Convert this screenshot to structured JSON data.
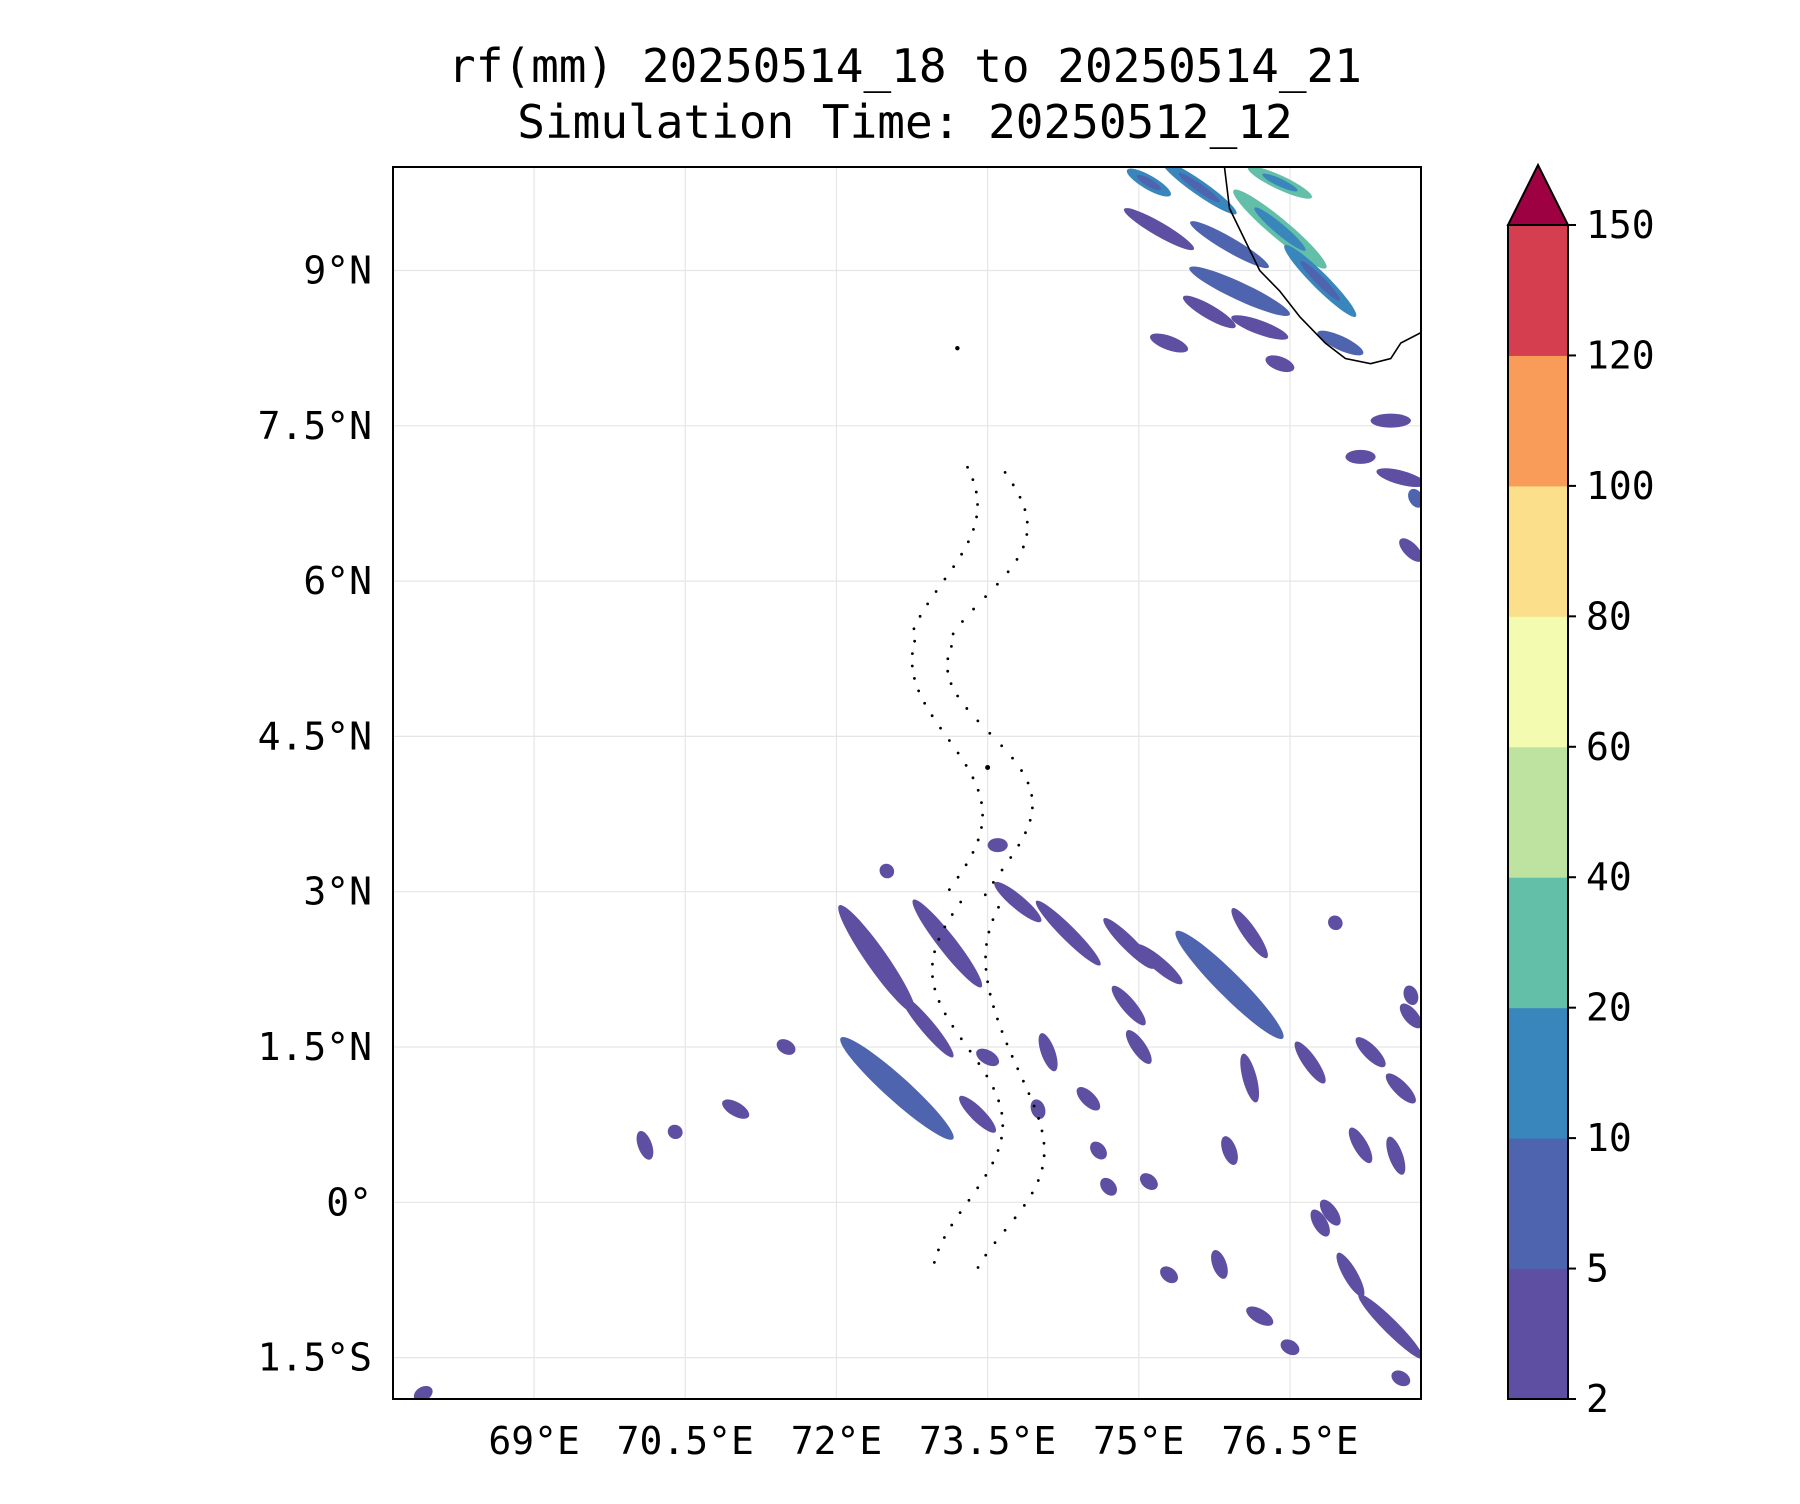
{
  "title": {
    "line1": "rf(mm) 20250514_18 to 20250514_21",
    "line2": "Simulation Time: 20250512_12"
  },
  "map": {
    "lon_range": [
      67.6,
      77.8
    ],
    "lat_range": [
      -1.9,
      10.0
    ],
    "gridlines": true,
    "lat_ticks": [
      {
        "value": 9,
        "label": "9°N"
      },
      {
        "value": 7.5,
        "label": "7.5°N"
      },
      {
        "value": 6,
        "label": "6°N"
      },
      {
        "value": 4.5,
        "label": "4.5°N"
      },
      {
        "value": 3,
        "label": "3°N"
      },
      {
        "value": 1.5,
        "label": "1.5°N"
      },
      {
        "value": 0,
        "label": "0°"
      },
      {
        "value": -1.5,
        "label": "1.5°S"
      }
    ],
    "lon_ticks": [
      {
        "value": 69,
        "label": "69°E"
      },
      {
        "value": 70.5,
        "label": "70.5°E"
      },
      {
        "value": 72,
        "label": "72°E"
      },
      {
        "value": 73.5,
        "label": "73.5°E"
      },
      {
        "value": 75,
        "label": "75°E"
      },
      {
        "value": 76.5,
        "label": "76.5°E"
      }
    ]
  },
  "colorbar": {
    "levels": [
      "2",
      "5",
      "10",
      "20",
      "40",
      "60",
      "80",
      "100",
      "120",
      "150"
    ],
    "colors": [
      "#5e4fa2",
      "#4f64ae",
      "#3986bc",
      "#64bfa8",
      "#bee3a0",
      "#f2fbb0",
      "#fcdf8b",
      "#f99c59",
      "#d53e4f"
    ],
    "extend_color": "#9e0142",
    "extend": "max"
  },
  "rain_cells": [
    {
      "lon": 72.4,
      "lat": 2.35,
      "len": 1.3,
      "ang": -55,
      "lvl": 0
    },
    {
      "lon": 72.9,
      "lat": 1.7,
      "len": 0.8,
      "ang": -50,
      "lvl": 0
    },
    {
      "lon": 73.1,
      "lat": 2.5,
      "len": 1.1,
      "ang": -52,
      "lvl": 0
    },
    {
      "lon": 72.6,
      "lat": 1.1,
      "len": 1.5,
      "ang": -42,
      "lvl": 1
    },
    {
      "lon": 73.4,
      "lat": 0.85,
      "len": 0.5,
      "ang": -45,
      "lvl": 0
    },
    {
      "lon": 73.8,
      "lat": 2.9,
      "len": 0.6,
      "ang": -40,
      "lvl": 0
    },
    {
      "lon": 74.3,
      "lat": 2.6,
      "len": 0.9,
      "ang": -45,
      "lvl": 0
    },
    {
      "lon": 74.9,
      "lat": 2.5,
      "len": 0.7,
      "ang": -45,
      "lvl": 0
    },
    {
      "lon": 75.2,
      "lat": 2.3,
      "len": 0.6,
      "ang": -40,
      "lvl": 0
    },
    {
      "lon": 75.9,
      "lat": 2.1,
      "len": 1.5,
      "ang": -45,
      "lvl": 1
    },
    {
      "lon": 76.1,
      "lat": 2.6,
      "len": 0.6,
      "ang": -55,
      "lvl": 0
    },
    {
      "lon": 74.9,
      "lat": 1.9,
      "len": 0.5,
      "ang": -50,
      "lvl": 0
    },
    {
      "lon": 75.0,
      "lat": 1.5,
      "len": 0.4,
      "ang": -55,
      "lvl": 0
    },
    {
      "lon": 74.1,
      "lat": 1.45,
      "len": 0.4,
      "ang": -70,
      "lvl": 0
    },
    {
      "lon": 73.5,
      "lat": 1.4,
      "len": 0.25,
      "ang": -30,
      "lvl": 0
    },
    {
      "lon": 71.5,
      "lat": 1.5,
      "len": 0.2,
      "ang": -30,
      "lvl": 0
    },
    {
      "lon": 71.0,
      "lat": 0.9,
      "len": 0.3,
      "ang": -30,
      "lvl": 0
    },
    {
      "lon": 70.1,
      "lat": 0.55,
      "len": 0.3,
      "ang": -70,
      "lvl": 0
    },
    {
      "lon": 70.4,
      "lat": 0.68,
      "len": 0.15,
      "ang": -30,
      "lvl": 0
    },
    {
      "lon": 73.6,
      "lat": 3.45,
      "len": 0.2,
      "ang": 0,
      "lvl": 0
    },
    {
      "lon": 72.5,
      "lat": 3.2,
      "len": 0.15,
      "ang": -45,
      "lvl": 0
    },
    {
      "lon": 76.7,
      "lat": 1.35,
      "len": 0.5,
      "ang": -55,
      "lvl": 0
    },
    {
      "lon": 77.3,
      "lat": 1.45,
      "len": 0.4,
      "ang": -45,
      "lvl": 0
    },
    {
      "lon": 77.7,
      "lat": 1.8,
      "len": 0.3,
      "ang": -50,
      "lvl": 0
    },
    {
      "lon": 77.6,
      "lat": 1.1,
      "len": 0.4,
      "ang": -45,
      "lvl": 0
    },
    {
      "lon": 76.1,
      "lat": 1.2,
      "len": 0.5,
      "ang": -75,
      "lvl": 0
    },
    {
      "lon": 77.2,
      "lat": 0.55,
      "len": 0.4,
      "ang": -60,
      "lvl": 0
    },
    {
      "lon": 77.55,
      "lat": 0.45,
      "len": 0.4,
      "ang": -70,
      "lvl": 0
    },
    {
      "lon": 77.5,
      "lat": -1.2,
      "len": 0.9,
      "ang": -45,
      "lvl": 0
    },
    {
      "lon": 77.1,
      "lat": -0.7,
      "len": 0.5,
      "ang": -60,
      "lvl": 0
    },
    {
      "lon": 76.8,
      "lat": -0.2,
      "len": 0.3,
      "ang": -60,
      "lvl": 0
    },
    {
      "lon": 76.2,
      "lat": -1.1,
      "len": 0.3,
      "ang": -30,
      "lvl": 0
    },
    {
      "lon": 75.8,
      "lat": -0.6,
      "len": 0.3,
      "ang": -70,
      "lvl": 0
    },
    {
      "lon": 75.3,
      "lat": -0.7,
      "len": 0.2,
      "ang": -40,
      "lvl": 0
    },
    {
      "lon": 75.9,
      "lat": 0.5,
      "len": 0.3,
      "ang": -70,
      "lvl": 0
    },
    {
      "lon": 75.1,
      "lat": 0.2,
      "len": 0.2,
      "ang": -40,
      "lvl": 0
    },
    {
      "lon": 74.5,
      "lat": 1.0,
      "len": 0.3,
      "ang": -45,
      "lvl": 0
    },
    {
      "lon": 74.0,
      "lat": 0.9,
      "len": 0.2,
      "ang": -70,
      "lvl": 0
    },
    {
      "lon": 74.6,
      "lat": 0.5,
      "len": 0.2,
      "ang": -50,
      "lvl": 0
    },
    {
      "lon": 74.7,
      "lat": 0.15,
      "len": 0.2,
      "ang": -50,
      "lvl": 0
    },
    {
      "lon": 77.6,
      "lat": -1.7,
      "len": 0.2,
      "ang": -30,
      "lvl": 0
    },
    {
      "lon": 76.5,
      "lat": -1.4,
      "len": 0.2,
      "ang": -30,
      "lvl": 0
    },
    {
      "lon": 76.9,
      "lat": -0.1,
      "len": 0.3,
      "ang": -55,
      "lvl": 0
    },
    {
      "lon": 76.95,
      "lat": 2.7,
      "len": 0.15,
      "ang": -45,
      "lvl": 0
    },
    {
      "lon": 77.7,
      "lat": 2.0,
      "len": 0.2,
      "ang": -70,
      "lvl": 0
    },
    {
      "lon": 67.9,
      "lat": -1.85,
      "len": 0.2,
      "ang": 30,
      "lvl": 0
    },
    {
      "lon": 75.7,
      "lat": 8.6,
      "len": 0.6,
      "ang": -30,
      "lvl": 0
    },
    {
      "lon": 76.0,
      "lat": 8.8,
      "len": 1.1,
      "ang": -25,
      "lvl": 1
    },
    {
      "lon": 75.2,
      "lat": 9.4,
      "len": 0.8,
      "ang": -30,
      "lvl": 0
    },
    {
      "lon": 75.6,
      "lat": 9.8,
      "len": 0.9,
      "ang": -35,
      "lvl": 2
    },
    {
      "lon": 76.4,
      "lat": 9.4,
      "len": 1.2,
      "ang": -40,
      "lvl": 3
    },
    {
      "lon": 76.8,
      "lat": 8.9,
      "len": 1.0,
      "ang": -45,
      "lvl": 2
    },
    {
      "lon": 75.9,
      "lat": 9.25,
      "len": 0.9,
      "ang": -30,
      "lvl": 1
    },
    {
      "lon": 76.4,
      "lat": 9.85,
      "len": 0.7,
      "ang": -25,
      "lvl": 3
    },
    {
      "lon": 75.1,
      "lat": 9.85,
      "len": 0.5,
      "ang": -30,
      "lvl": 2
    },
    {
      "lon": 76.2,
      "lat": 8.45,
      "len": 0.6,
      "ang": -20,
      "lvl": 0
    },
    {
      "lon": 77.0,
      "lat": 8.3,
      "len": 0.5,
      "ang": -25,
      "lvl": 1
    },
    {
      "lon": 76.4,
      "lat": 8.1,
      "len": 0.3,
      "ang": -20,
      "lvl": 0
    },
    {
      "lon": 77.5,
      "lat": 7.55,
      "len": 0.4,
      "ang": 0,
      "lvl": 0
    },
    {
      "lon": 77.6,
      "lat": 7.0,
      "len": 0.5,
      "ang": -15,
      "lvl": 0
    },
    {
      "lon": 77.7,
      "lat": 6.3,
      "len": 0.3,
      "ang": -45,
      "lvl": 0
    },
    {
      "lon": 77.2,
      "lat": 7.2,
      "len": 0.3,
      "ang": 0,
      "lvl": 0
    },
    {
      "lon": 77.75,
      "lat": 6.8,
      "len": 0.2,
      "ang": -60,
      "lvl": 1
    },
    {
      "lon": 75.3,
      "lat": 8.3,
      "len": 0.4,
      "ang": -20,
      "lvl": 0
    }
  ],
  "coastline_west_india": [
    [
      75.85,
      10.0
    ],
    [
      75.9,
      9.6
    ],
    [
      76.05,
      9.3
    ],
    [
      76.2,
      9.0
    ],
    [
      76.4,
      8.8
    ],
    [
      76.6,
      8.55
    ],
    [
      76.85,
      8.3
    ],
    [
      77.05,
      8.15
    ],
    [
      77.3,
      8.1
    ],
    [
      77.5,
      8.15
    ],
    [
      77.6,
      8.3
    ],
    [
      77.8,
      8.4
    ]
  ]
}
